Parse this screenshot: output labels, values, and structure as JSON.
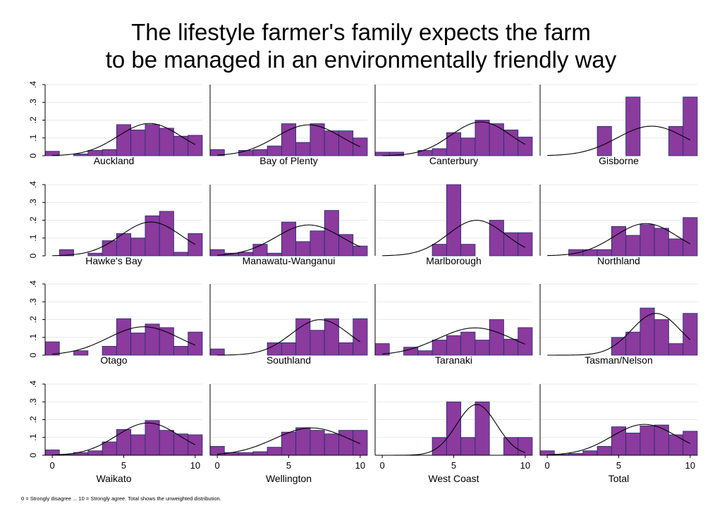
{
  "title_lines": [
    "The lifestyle farmer's family expects the farm",
    "to be managed in an environmentally friendly way"
  ],
  "note": "0 = Strongly disagree ... 10 = Strongly agree. Total shows the unweighted distribution.",
  "colors": {
    "bar_fill": "#8b3a9e",
    "bar_stroke": "#1f2d6b",
    "curve": "#000000",
    "grid": "#e8e8e8",
    "axis": "#000000"
  },
  "chart_data": {
    "type": "bar",
    "subtype": "histogram-with-normal-curve",
    "layout": "4x4 small multiples",
    "x_ticks": [
      0,
      5,
      10
    ],
    "x_tick_labels": [
      "0",
      "5",
      "10"
    ],
    "y_ticks": [
      0,
      0.1,
      0.2,
      0.3,
      0.4
    ],
    "y_tick_labels": [
      "0",
      ".1",
      ".2",
      ".3",
      ".4"
    ],
    "xlim": [
      -0.5,
      10.5
    ],
    "ylim": [
      0,
      0.4
    ],
    "grid": true,
    "panels": [
      {
        "name": "Auckland",
        "bins": [
          0,
          1,
          2,
          3,
          4,
          5,
          6,
          7,
          8,
          9,
          10
        ],
        "values": [
          0.025,
          0.0,
          0.01,
          0.03,
          0.035,
          0.175,
          0.145,
          0.175,
          0.155,
          0.11,
          0.115
        ],
        "mean": 6.8,
        "sd": 2.2
      },
      {
        "name": "Bay of Plenty",
        "bins": [
          0,
          1,
          2,
          3,
          4,
          5,
          6,
          7,
          8,
          9,
          10
        ],
        "values": [
          0.035,
          0.0,
          0.03,
          0.035,
          0.055,
          0.18,
          0.075,
          0.18,
          0.14,
          0.14,
          0.1
        ],
        "mean": 6.4,
        "sd": 2.3
      },
      {
        "name": "Canterbury",
        "bins": [
          0,
          1,
          2,
          3,
          4,
          5,
          6,
          7,
          8,
          9,
          10
        ],
        "values": [
          0.02,
          0.02,
          0.0,
          0.03,
          0.04,
          0.13,
          0.1,
          0.2,
          0.18,
          0.145,
          0.105
        ],
        "mean": 6.9,
        "sd": 2.1
      },
      {
        "name": "Gisborne",
        "bins": [
          0,
          1,
          2,
          3,
          4,
          5,
          6,
          7,
          8,
          9,
          10
        ],
        "values": [
          0,
          0,
          0,
          0,
          0.165,
          0,
          0.33,
          0,
          0,
          0.165,
          0.33
        ],
        "mean": 7.3,
        "sd": 2.4
      },
      {
        "name": "Hawke's Bay",
        "bins": [
          0,
          1,
          2,
          3,
          4,
          5,
          6,
          7,
          8,
          9,
          10
        ],
        "values": [
          0.0,
          0.035,
          0.0,
          0.015,
          0.085,
          0.125,
          0.1,
          0.225,
          0.25,
          0.02,
          0.125
        ],
        "mean": 6.9,
        "sd": 2.1
      },
      {
        "name": "Manawatu-Wanganui",
        "bins": [
          0,
          1,
          2,
          3,
          4,
          5,
          6,
          7,
          8,
          9,
          10
        ],
        "values": [
          0.035,
          0.015,
          0.02,
          0.065,
          0.015,
          0.19,
          0.08,
          0.14,
          0.255,
          0.12,
          0.055
        ],
        "mean": 6.4,
        "sd": 2.3
      },
      {
        "name": "Marlborough",
        "bins": [
          0,
          1,
          2,
          3,
          4,
          5,
          6,
          7,
          8,
          9,
          10
        ],
        "values": [
          0,
          0,
          0,
          0,
          0.065,
          0.4,
          0.065,
          0,
          0.2,
          0.13,
          0.13
        ],
        "mean": 6.6,
        "sd": 2.0
      },
      {
        "name": "Northland",
        "bins": [
          0,
          1,
          2,
          3,
          4,
          5,
          6,
          7,
          8,
          9,
          10
        ],
        "values": [
          0.0,
          0.0,
          0.035,
          0.035,
          0.035,
          0.165,
          0.115,
          0.175,
          0.155,
          0.095,
          0.215
        ],
        "mean": 6.9,
        "sd": 2.2
      },
      {
        "name": "Otago",
        "bins": [
          0,
          1,
          2,
          3,
          4,
          5,
          6,
          7,
          8,
          9,
          10
        ],
        "values": [
          0.075,
          0.0,
          0.025,
          0.0,
          0.05,
          0.205,
          0.125,
          0.175,
          0.155,
          0.05,
          0.13
        ],
        "mean": 6.4,
        "sd": 2.5
      },
      {
        "name": "Southland",
        "bins": [
          0,
          1,
          2,
          3,
          4,
          5,
          6,
          7,
          8,
          9,
          10
        ],
        "values": [
          0.035,
          0,
          0,
          0,
          0.07,
          0.07,
          0.205,
          0.14,
          0.205,
          0.07,
          0.205
        ],
        "mean": 7.2,
        "sd": 2.0
      },
      {
        "name": "Taranaki",
        "bins": [
          0,
          1,
          2,
          3,
          4,
          5,
          6,
          7,
          8,
          9,
          10
        ],
        "values": [
          0.065,
          0.0,
          0.045,
          0.025,
          0.085,
          0.11,
          0.13,
          0.085,
          0.2,
          0.09,
          0.155
        ],
        "mean": 6.5,
        "sd": 2.6
      },
      {
        "name": "Tasman/Nelson",
        "bins": [
          0,
          1,
          2,
          3,
          4,
          5,
          6,
          7,
          8,
          9,
          10
        ],
        "values": [
          0,
          0,
          0,
          0,
          0,
          0.1,
          0.13,
          0.265,
          0.2,
          0.065,
          0.235
        ],
        "mean": 7.6,
        "sd": 1.7
      },
      {
        "name": "Waikato",
        "bins": [
          0,
          1,
          2,
          3,
          4,
          5,
          6,
          7,
          8,
          9,
          10
        ],
        "values": [
          0.03,
          0.005,
          0.015,
          0.025,
          0.075,
          0.145,
          0.115,
          0.195,
          0.14,
          0.12,
          0.115
        ],
        "mean": 6.7,
        "sd": 2.2
      },
      {
        "name": "Wellington",
        "bins": [
          0,
          1,
          2,
          3,
          4,
          5,
          6,
          7,
          8,
          9,
          10
        ],
        "values": [
          0.05,
          0.015,
          0.015,
          0.02,
          0.045,
          0.13,
          0.155,
          0.14,
          0.12,
          0.14,
          0.14
        ],
        "mean": 6.6,
        "sd": 2.6
      },
      {
        "name": "West Coast",
        "bins": [
          0,
          1,
          2,
          3,
          4,
          5,
          6,
          7,
          8,
          9,
          10
        ],
        "values": [
          0,
          0,
          0,
          0,
          0.1,
          0.3,
          0.1,
          0.3,
          0,
          0.1,
          0.1
        ],
        "mean": 6.6,
        "sd": 1.4
      },
      {
        "name": "Total",
        "bins": [
          0,
          1,
          2,
          3,
          4,
          5,
          6,
          7,
          8,
          9,
          10
        ],
        "values": [
          0.025,
          0.005,
          0.01,
          0.025,
          0.05,
          0.16,
          0.125,
          0.165,
          0.17,
          0.115,
          0.135
        ],
        "mean": 6.8,
        "sd": 2.3
      }
    ]
  }
}
